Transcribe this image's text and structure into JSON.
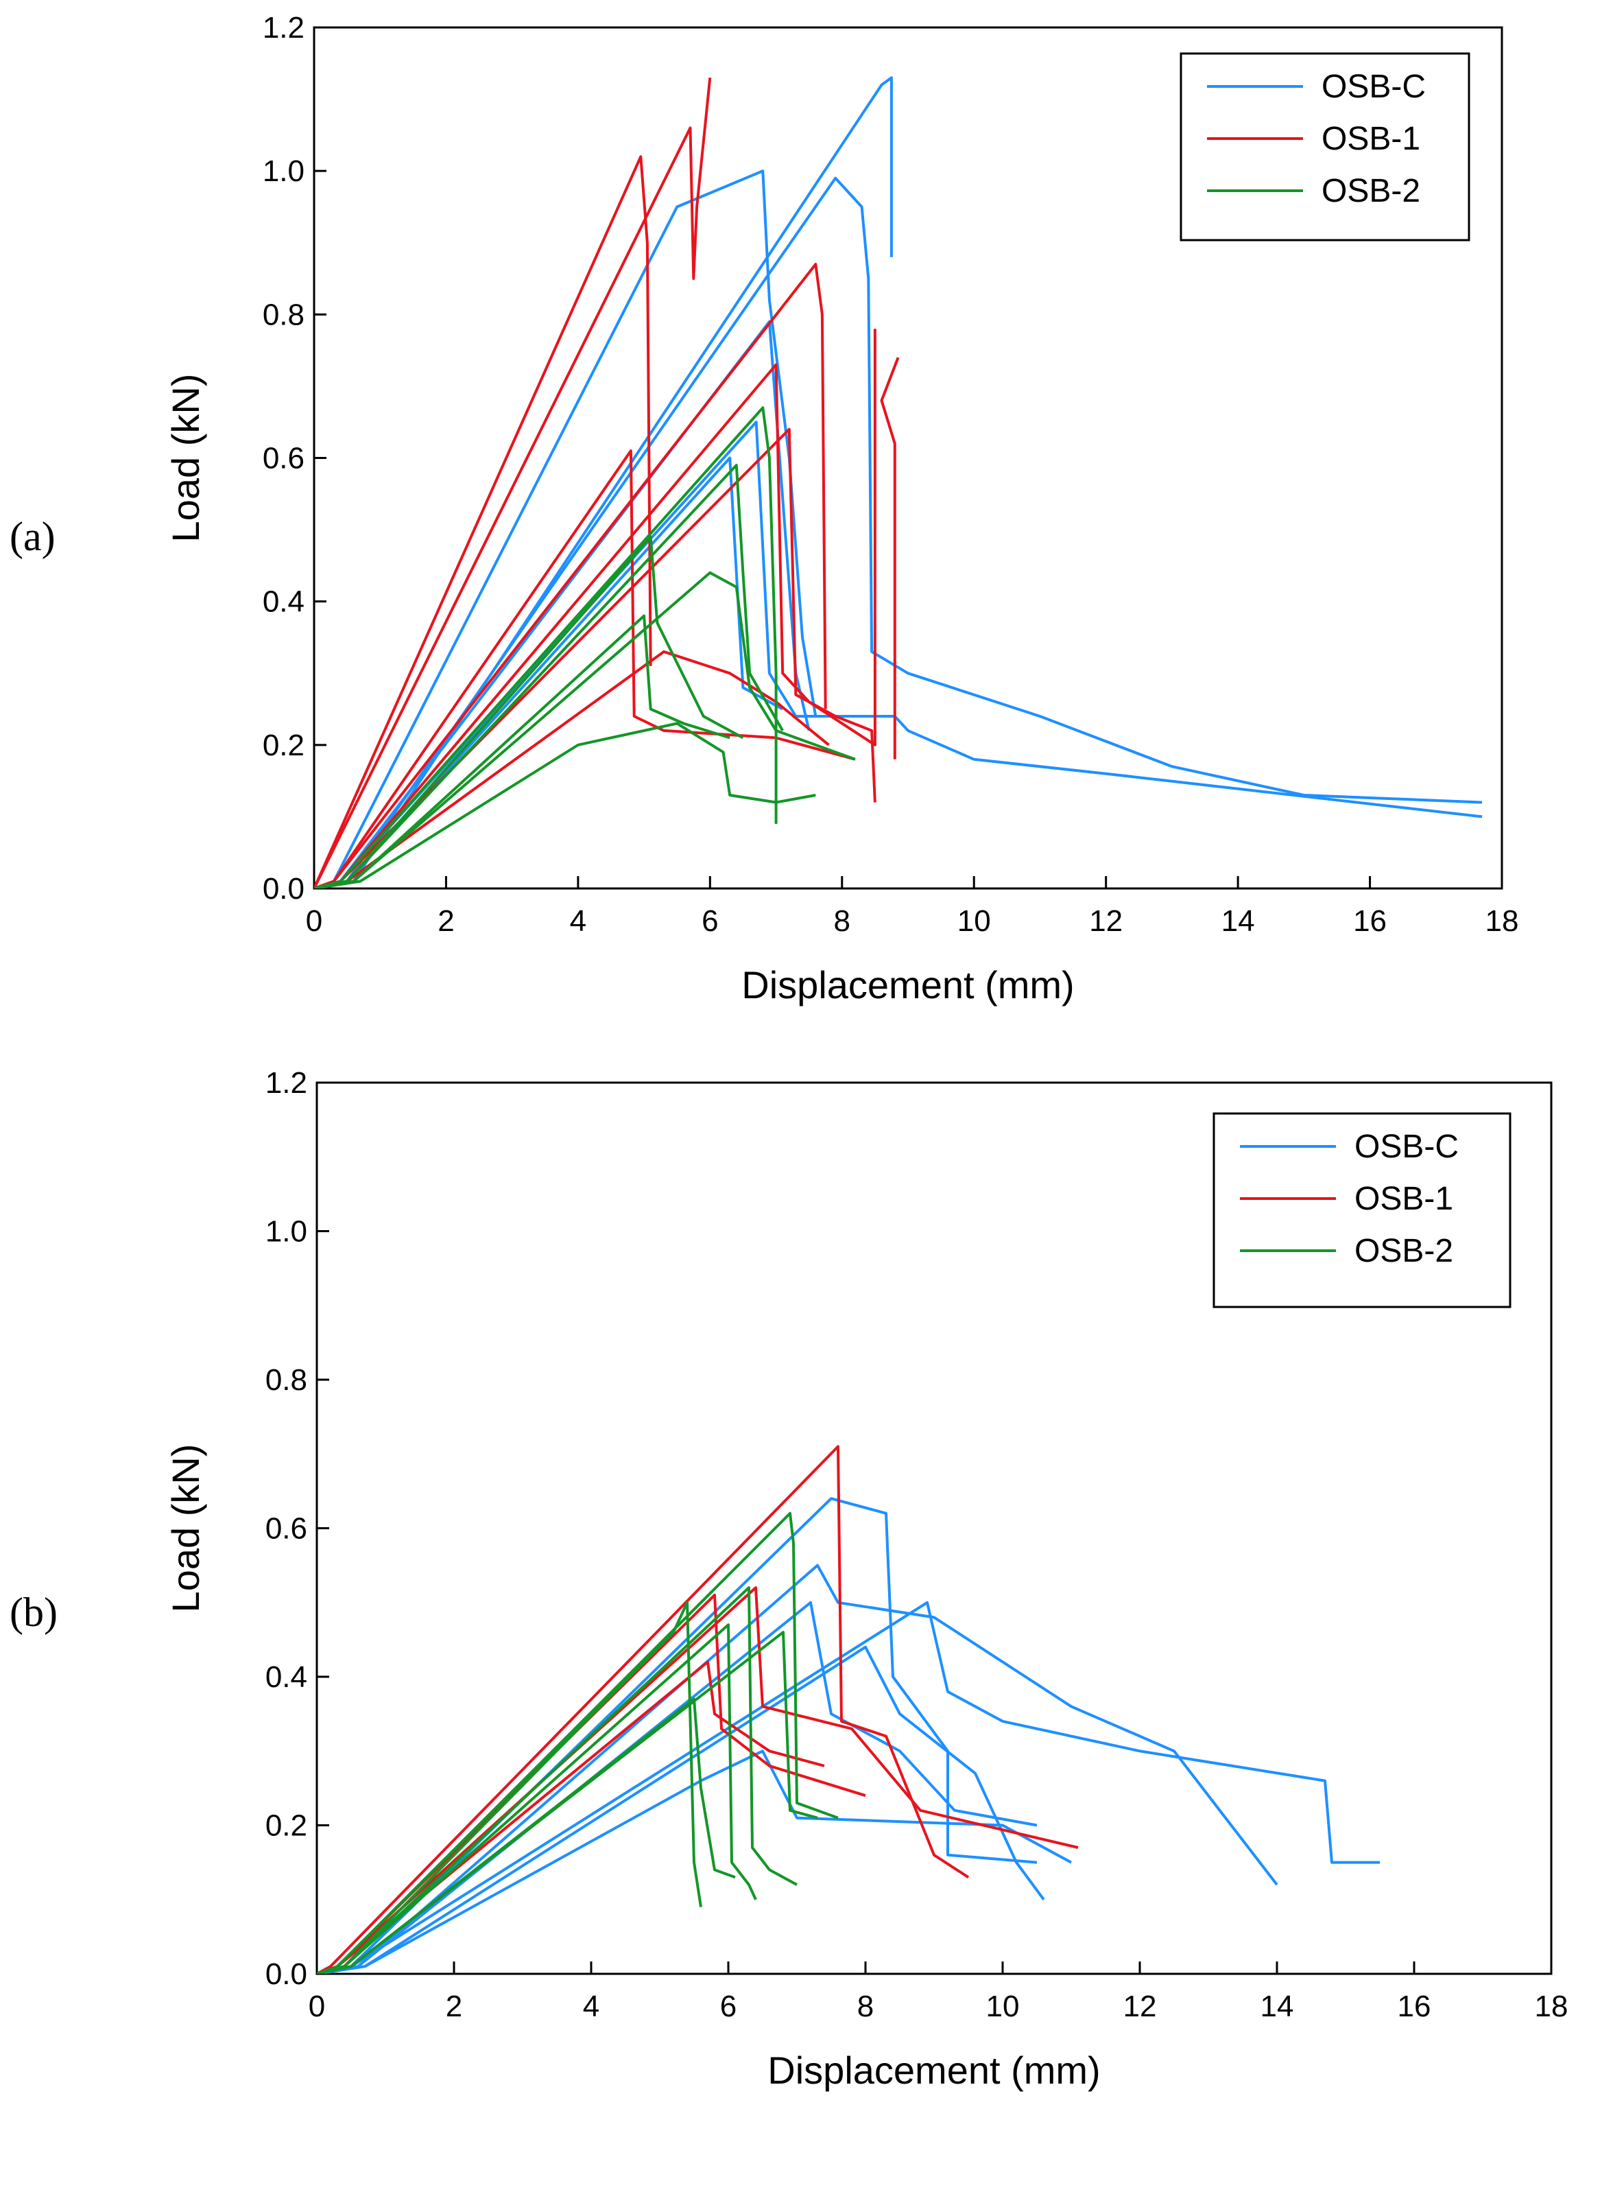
{
  "chart_data": [
    {
      "panel": "(a)",
      "type": "line",
      "xlabel": "Displacement (mm)",
      "ylabel": "Load (kN)",
      "xlim": [
        0,
        18
      ],
      "ylim": [
        0,
        1.2
      ],
      "xticks": [
        0,
        2,
        4,
        6,
        8,
        10,
        12,
        14,
        16,
        18
      ],
      "yticks": [
        "0.0",
        "0.2",
        "0.4",
        "0.6",
        "0.8",
        "1.0",
        "1.2"
      ],
      "legend": [
        "OSB-C",
        "OSB-1",
        "OSB-2"
      ],
      "legend_position": "top-right",
      "series": [
        {
          "name": "OSB-C",
          "color": "#1e90ff",
          "x": [
            0,
            0.3,
            5.5,
            6.8,
            6.9,
            7.2,
            7.4,
            7.6
          ],
          "y": [
            0,
            0.01,
            0.95,
            1.0,
            0.82,
            0.6,
            0.35,
            0.24
          ]
        },
        {
          "name": "OSB-C",
          "color": "#1e90ff",
          "x": [
            0,
            0.5,
            7.9,
            8.3,
            8.4,
            8.45,
            9.0,
            11.0,
            13.0,
            15.0,
            17.7
          ],
          "y": [
            0,
            0.01,
            0.99,
            0.95,
            0.85,
            0.33,
            0.3,
            0.24,
            0.17,
            0.13,
            0.12
          ]
        },
        {
          "name": "OSB-C",
          "color": "#1e90ff",
          "x": [
            0,
            0.6,
            8.6,
            8.75,
            8.75
          ],
          "y": [
            0,
            0.01,
            1.12,
            1.13,
            0.88
          ]
        },
        {
          "name": "OSB-C",
          "color": "#1e90ff",
          "x": [
            0,
            0.4,
            6.7,
            6.9,
            7.3,
            8.8,
            9.0,
            10.0,
            12.0,
            17.7
          ],
          "y": [
            0,
            0.01,
            0.65,
            0.3,
            0.24,
            0.24,
            0.22,
            0.18,
            0.16,
            0.1
          ]
        },
        {
          "name": "OSB-C",
          "color": "#1e90ff",
          "x": [
            0,
            0.5,
            6.3,
            6.5,
            7.1
          ],
          "y": [
            0,
            0.01,
            0.6,
            0.28,
            0.25
          ]
        },
        {
          "name": "OSB-C",
          "color": "#1e90ff",
          "x": [
            0,
            0.4,
            6.9,
            7.3,
            7.5
          ],
          "y": [
            0,
            0.01,
            0.79,
            0.3,
            0.22
          ]
        },
        {
          "name": "OSB-1",
          "color": "#e8141e",
          "x": [
            0,
            4.95,
            5.05,
            5.1
          ],
          "y": [
            0,
            1.02,
            0.9,
            0.31
          ]
        },
        {
          "name": "OSB-1",
          "color": "#e8141e",
          "x": [
            0,
            5.7,
            5.75,
            5.8,
            6.0
          ],
          "y": [
            0,
            1.06,
            0.85,
            0.95,
            1.13
          ]
        },
        {
          "name": "OSB-1",
          "color": "#e8141e",
          "x": [
            0,
            0.3,
            7.6,
            7.7,
            7.75
          ],
          "y": [
            0,
            0.01,
            0.87,
            0.8,
            0.25
          ]
        },
        {
          "name": "OSB-1",
          "color": "#e8141e",
          "x": [
            0,
            0.3,
            4.8,
            4.85,
            5.3,
            7.0,
            8.2
          ],
          "y": [
            0,
            0.01,
            0.61,
            0.24,
            0.22,
            0.21,
            0.18
          ]
        },
        {
          "name": "OSB-1",
          "color": "#e8141e",
          "x": [
            0,
            0.4,
            7.0,
            7.1,
            7.5,
            8.5,
            8.5
          ],
          "y": [
            0,
            0.01,
            0.73,
            0.3,
            0.26,
            0.2,
            0.78
          ]
        },
        {
          "name": "OSB-1",
          "color": "#e8141e",
          "x": [
            0,
            0.4,
            7.2,
            7.3,
            7.9,
            8.45,
            8.5
          ],
          "y": [
            0,
            0.01,
            0.64,
            0.27,
            0.24,
            0.22,
            0.12
          ]
        },
        {
          "name": "OSB-1",
          "color": "#e8141e",
          "x": [
            0,
            0.5,
            5.3,
            6.3,
            7.0,
            7.8
          ],
          "y": [
            0,
            0.01,
            0.33,
            0.3,
            0.26,
            0.2
          ]
        },
        {
          "name": "OSB-1",
          "color": "#e8141e",
          "x": [
            8.8,
            8.8,
            8.6,
            8.85
          ],
          "y": [
            0.18,
            0.62,
            0.68,
            0.74
          ]
        },
        {
          "name": "OSB-2",
          "color": "#149628",
          "x": [
            0,
            0.4,
            6.8,
            6.9,
            7.0,
            7.0
          ],
          "y": [
            0,
            0.01,
            0.67,
            0.6,
            0.3,
            0.09
          ]
        },
        {
          "name": "OSB-2",
          "color": "#149628",
          "x": [
            0,
            0.5,
            5.1,
            5.2,
            5.9,
            6.5
          ],
          "y": [
            0,
            0.01,
            0.49,
            0.37,
            0.24,
            0.21
          ]
        },
        {
          "name": "OSB-2",
          "color": "#149628",
          "x": [
            0,
            0.5,
            6.4,
            6.5,
            6.6,
            7.1
          ],
          "y": [
            0,
            0.01,
            0.59,
            0.44,
            0.3,
            0.22
          ]
        },
        {
          "name": "OSB-2",
          "color": "#149628",
          "x": [
            0,
            0.6,
            6.0,
            6.4,
            6.6,
            7.0,
            8.2
          ],
          "y": [
            0,
            0.01,
            0.44,
            0.42,
            0.28,
            0.22,
            0.18
          ]
        },
        {
          "name": "OSB-2",
          "color": "#149628",
          "x": [
            0,
            0.6,
            5.0,
            5.1,
            5.6,
            6.3
          ],
          "y": [
            0,
            0.01,
            0.38,
            0.25,
            0.23,
            0.21
          ]
        },
        {
          "name": "OSB-2",
          "color": "#149628",
          "x": [
            0,
            0.7,
            4.0,
            5.5,
            6.2,
            6.3,
            7.0,
            7.6
          ],
          "y": [
            0,
            0.01,
            0.2,
            0.23,
            0.19,
            0.13,
            0.12,
            0.13
          ]
        }
      ]
    },
    {
      "panel": "(b)",
      "type": "line",
      "xlabel": "Displacement (mm)",
      "ylabel": "Load (kN)",
      "xlim": [
        0,
        18
      ],
      "ylim": [
        0,
        1.2
      ],
      "xticks": [
        0,
        2,
        4,
        6,
        8,
        10,
        12,
        14,
        16,
        18
      ],
      "yticks": [
        "0.0",
        "0.2",
        "0.4",
        "0.6",
        "0.8",
        "1.0",
        "1.2"
      ],
      "legend": [
        "OSB-C",
        "OSB-1",
        "OSB-2"
      ],
      "legend_position": "top-right",
      "series": [
        {
          "name": "OSB-C",
          "color": "#1e90ff",
          "x": [
            0,
            0.5,
            7.5,
            8.3,
            8.4,
            9.2,
            9.2,
            10.5
          ],
          "y": [
            0,
            0.01,
            0.64,
            0.62,
            0.4,
            0.3,
            0.16,
            0.15
          ]
        },
        {
          "name": "OSB-C",
          "color": "#1e90ff",
          "x": [
            0,
            0.5,
            8.9,
            9.2,
            10.0,
            12.0,
            14.7,
            14.8,
            15.5
          ],
          "y": [
            0,
            0.01,
            0.5,
            0.38,
            0.34,
            0.3,
            0.26,
            0.15,
            0.15
          ]
        },
        {
          "name": "OSB-C",
          "color": "#1e90ff",
          "x": [
            0,
            0.6,
            7.3,
            7.6,
            9.0,
            11.0,
            12.5,
            13.5,
            14.0
          ],
          "y": [
            0,
            0.01,
            0.55,
            0.5,
            0.48,
            0.36,
            0.3,
            0.18,
            0.12
          ]
        },
        {
          "name": "OSB-C",
          "color": "#1e90ff",
          "x": [
            0,
            0.6,
            7.2,
            7.5,
            8.5,
            9.3,
            10.5
          ],
          "y": [
            0,
            0.01,
            0.5,
            0.35,
            0.3,
            0.22,
            0.2
          ]
        },
        {
          "name": "OSB-C",
          "color": "#1e90ff",
          "x": [
            0,
            0.7,
            8.0,
            8.5,
            9.6,
            10.2,
            10.6
          ],
          "y": [
            0,
            0.01,
            0.44,
            0.35,
            0.27,
            0.15,
            0.1
          ]
        },
        {
          "name": "OSB-C",
          "color": "#1e90ff",
          "x": [
            0,
            0.7,
            5.6,
            6.5,
            7.0,
            10.0,
            11.0
          ],
          "y": [
            0,
            0.01,
            0.26,
            0.3,
            0.21,
            0.2,
            0.15
          ]
        },
        {
          "name": "OSB-1",
          "color": "#e8141e",
          "x": [
            0,
            0.2,
            7.6,
            7.65,
            8.3,
            9.0,
            9.5
          ],
          "y": [
            0,
            0.01,
            0.71,
            0.34,
            0.32,
            0.16,
            0.13
          ]
        },
        {
          "name": "OSB-1",
          "color": "#e8141e",
          "x": [
            0,
            0.3,
            6.4,
            6.5,
            7.8,
            8.8,
            11.1
          ],
          "y": [
            0,
            0.01,
            0.52,
            0.36,
            0.33,
            0.22,
            0.17
          ]
        },
        {
          "name": "OSB-1",
          "color": "#e8141e",
          "x": [
            0,
            0.3,
            5.8,
            5.9,
            6.6,
            8.0
          ],
          "y": [
            0,
            0.01,
            0.51,
            0.33,
            0.28,
            0.24
          ]
        },
        {
          "name": "OSB-1",
          "color": "#e8141e",
          "x": [
            0,
            0.3,
            5.7,
            5.8,
            6.6,
            7.4
          ],
          "y": [
            0,
            0.01,
            0.42,
            0.35,
            0.3,
            0.28
          ]
        },
        {
          "name": "OSB-2",
          "color": "#149628",
          "x": [
            0,
            0.3,
            6.9,
            6.95,
            7.0,
            7.6
          ],
          "y": [
            0,
            0.01,
            0.62,
            0.58,
            0.23,
            0.21
          ]
        },
        {
          "name": "OSB-2",
          "color": "#149628",
          "x": [
            0,
            0.4,
            6.3,
            6.35,
            6.6,
            7.0
          ],
          "y": [
            0,
            0.01,
            0.52,
            0.17,
            0.14,
            0.12
          ]
        },
        {
          "name": "OSB-2",
          "color": "#149628",
          "x": [
            0,
            0.4,
            6.0,
            6.05,
            6.3,
            6.4
          ],
          "y": [
            0,
            0.01,
            0.47,
            0.15,
            0.12,
            0.1
          ]
        },
        {
          "name": "OSB-2",
          "color": "#149628",
          "x": [
            0,
            0.5,
            5.5,
            5.6,
            5.8,
            6.1
          ],
          "y": [
            0,
            0.01,
            0.37,
            0.25,
            0.14,
            0.13
          ]
        },
        {
          "name": "OSB-2",
          "color": "#149628",
          "x": [
            0,
            0.5,
            6.8,
            6.9,
            7.3
          ],
          "y": [
            0,
            0.01,
            0.46,
            0.22,
            0.21
          ]
        },
        {
          "name": "OSB-2",
          "color": "#149628",
          "x": [
            0,
            0.4,
            5.2,
            5.4,
            5.5,
            5.6
          ],
          "y": [
            0,
            0.01,
            0.46,
            0.5,
            0.15,
            0.09
          ]
        }
      ]
    }
  ]
}
